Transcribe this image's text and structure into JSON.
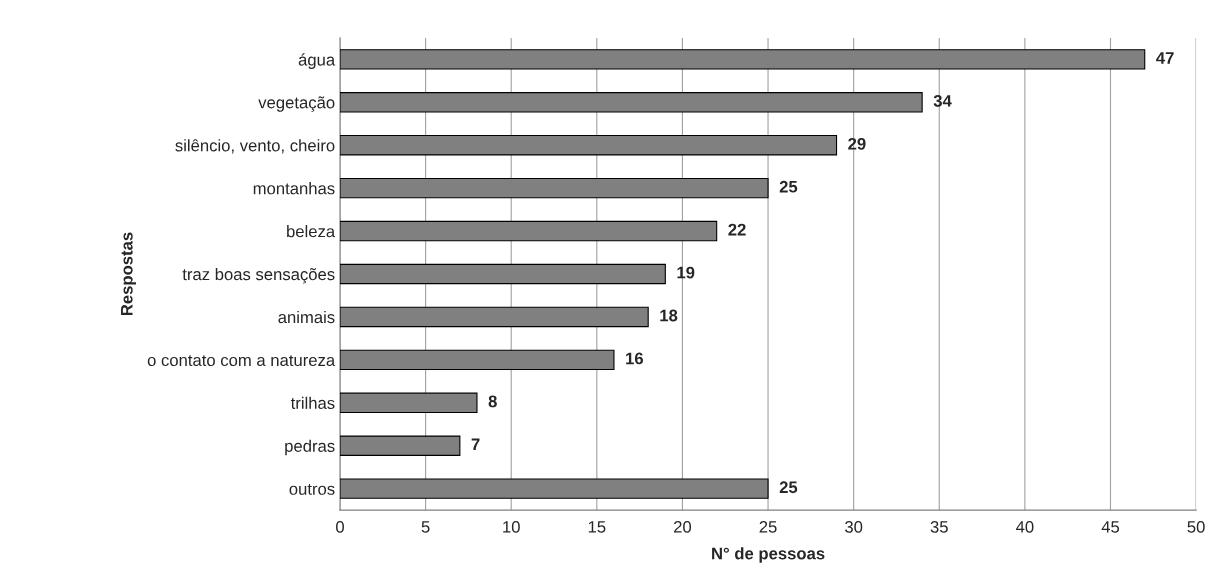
{
  "chart_data": {
    "type": "bar",
    "orientation": "horizontal",
    "xlabel": "N° de pessoas",
    "ylabel": "Respostas",
    "categories": [
      "água",
      "vegetação",
      "silêncio, vento, cheiro",
      "montanhas",
      "beleza",
      "traz boas sensações",
      "animais",
      "o contato com a natureza",
      "trilhas",
      "pedras",
      "outros"
    ],
    "values": [
      47,
      34,
      29,
      25,
      22,
      19,
      18,
      16,
      8,
      7,
      25
    ],
    "color": "#808080",
    "xlim": [
      0,
      50
    ],
    "xticks": [
      0,
      5,
      10,
      15,
      20,
      25,
      30,
      35,
      40,
      45,
      50
    ],
    "grid": "x",
    "data_labels": true
  }
}
